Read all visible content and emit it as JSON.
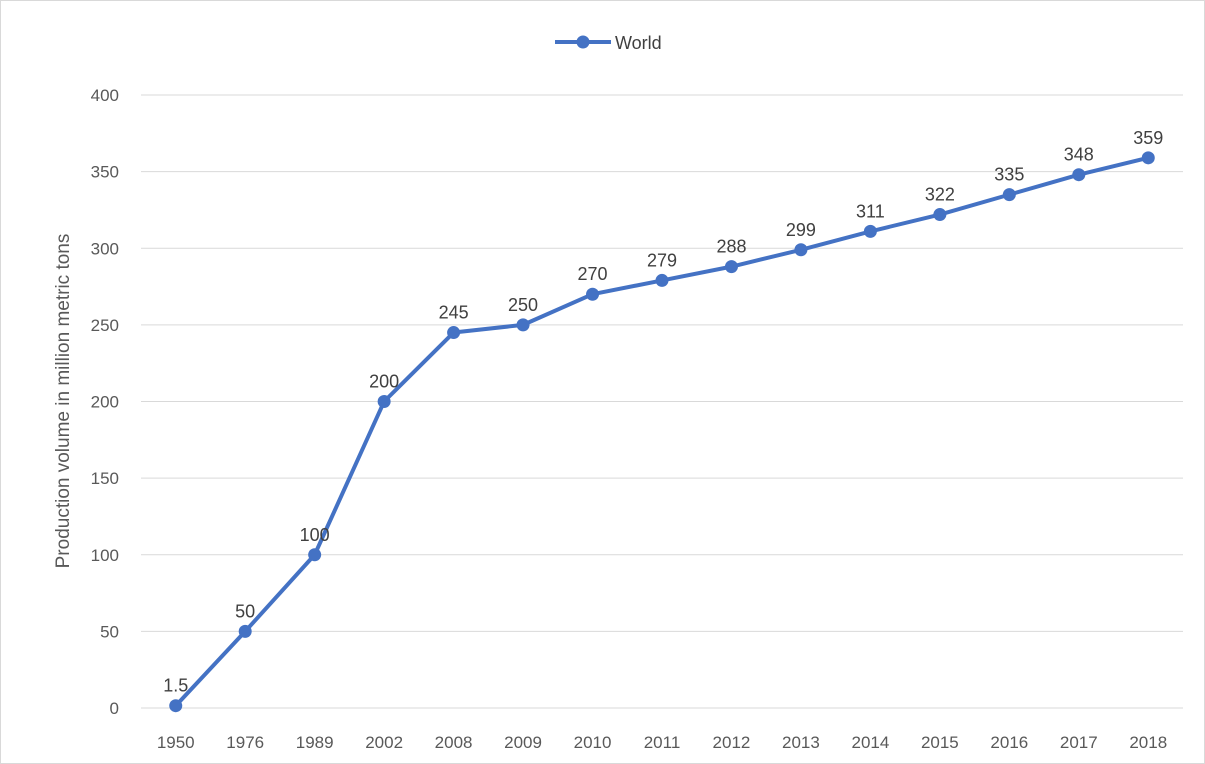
{
  "chart_data": {
    "type": "line",
    "title": "",
    "xlabel": "",
    "ylabel": "Production volume in million metric tons",
    "categories": [
      "1950",
      "1976",
      "1989",
      "2002",
      "2008",
      "2009",
      "2010",
      "2011",
      "2012",
      "2013",
      "2014",
      "2015",
      "2016",
      "2017",
      "2018"
    ],
    "series": [
      {
        "name": "World",
        "values": [
          1.5,
          50,
          100,
          200,
          245,
          250,
          270,
          279,
          288,
          299,
          311,
          322,
          335,
          348,
          359
        ],
        "data_labels": [
          "1.5",
          "50",
          "100",
          "200",
          "245",
          "250",
          "270",
          "279",
          "288",
          "299",
          "311",
          "322",
          "335",
          "348",
          "359"
        ],
        "color": "#4472c4"
      }
    ],
    "ylim": [
      0,
      400
    ],
    "yticks": [
      "0",
      "50",
      "100",
      "150",
      "200",
      "250",
      "300",
      "350",
      "400"
    ],
    "grid": true,
    "legend_position": "top-center",
    "colors": {
      "series": "#4472c4",
      "grid": "#d9d9d9",
      "tick_text": "#595959",
      "label_text": "#404040"
    }
  }
}
